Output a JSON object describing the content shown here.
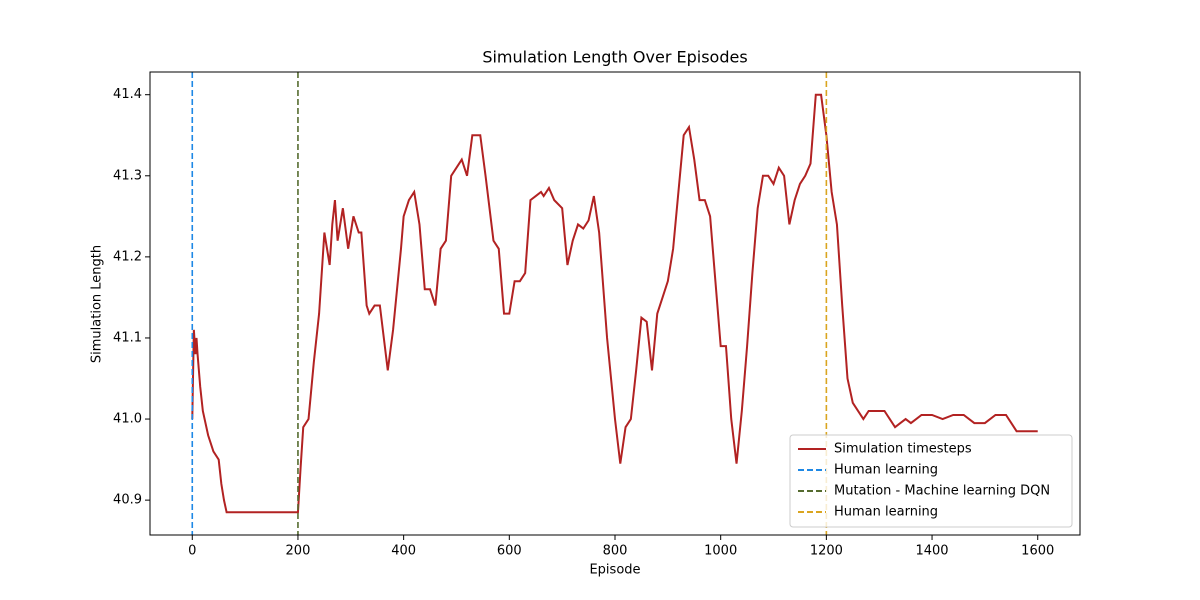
{
  "chart_data": {
    "type": "line",
    "title": "Simulation Length Over Episodes",
    "xlabel": "Episode",
    "ylabel": "Simulation Length",
    "xlim": [
      -80,
      1680
    ],
    "ylim": [
      40.857,
      41.428
    ],
    "xticks": [
      0,
      200,
      400,
      600,
      800,
      1000,
      1200,
      1400,
      1600
    ],
    "yticks": [
      40.9,
      {
        "value": 41,
        "label": "41.0"
      },
      41.1,
      41.2,
      41.3,
      41.4
    ],
    "legend": "lower right",
    "x": [
      0,
      3,
      6,
      8,
      10,
      15,
      20,
      30,
      40,
      50,
      55,
      60,
      65,
      70,
      200,
      205,
      210,
      220,
      230,
      240,
      250,
      260,
      265,
      270,
      275,
      285,
      295,
      305,
      315,
      320,
      330,
      335,
      345,
      355,
      370,
      380,
      395,
      400,
      410,
      420,
      430,
      440,
      450,
      460,
      470,
      480,
      490,
      500,
      510,
      520,
      530,
      545,
      555,
      570,
      580,
      590,
      600,
      610,
      620,
      630,
      640,
      650,
      660,
      665,
      675,
      685,
      700,
      710,
      720,
      730,
      740,
      750,
      760,
      770,
      785,
      800,
      810,
      820,
      830,
      840,
      850,
      860,
      870,
      880,
      890,
      900,
      910,
      920,
      930,
      940,
      950,
      960,
      970,
      980,
      990,
      1000,
      1010,
      1020,
      1030,
      1040,
      1050,
      1060,
      1070,
      1080,
      1090,
      1100,
      1110,
      1120,
      1130,
      1140,
      1150,
      1160,
      1170,
      1180,
      1190,
      1200,
      1210,
      1220,
      1230,
      1240,
      1250,
      1260,
      1270,
      1280,
      1290,
      1300,
      1310,
      1320,
      1330,
      1340,
      1350,
      1360,
      1370,
      1380,
      1400,
      1420,
      1440,
      1460,
      1480,
      1500,
      1520,
      1540,
      1550,
      1560,
      1600
    ],
    "series": [
      {
        "name": "Simulation timesteps",
        "color": "#b22222",
        "values": [
          41.0,
          41.11,
          41.08,
          41.1,
          41.08,
          41.04,
          41.01,
          40.98,
          40.96,
          40.95,
          40.92,
          40.9,
          40.885,
          40.885,
          40.885,
          40.94,
          40.99,
          41.0,
          41.07,
          41.13,
          41.23,
          41.19,
          41.24,
          41.27,
          41.22,
          41.26,
          41.21,
          41.25,
          41.23,
          41.23,
          41.14,
          41.13,
          41.14,
          41.14,
          41.06,
          41.11,
          41.21,
          41.25,
          41.27,
          41.28,
          41.24,
          41.16,
          41.16,
          41.14,
          41.21,
          41.22,
          41.3,
          41.31,
          41.32,
          41.3,
          41.35,
          41.35,
          41.3,
          41.22,
          41.21,
          41.13,
          41.13,
          41.17,
          41.17,
          41.18,
          41.27,
          41.275,
          41.28,
          41.275,
          41.285,
          41.27,
          41.26,
          41.19,
          41.22,
          41.24,
          41.235,
          41.245,
          41.275,
          41.23,
          41.1,
          41.0,
          40.945,
          40.99,
          41.0,
          41.06,
          41.125,
          41.12,
          41.06,
          41.13,
          41.15,
          41.17,
          41.21,
          41.28,
          41.35,
          41.36,
          41.32,
          41.27,
          41.27,
          41.25,
          41.17,
          41.09,
          41.09,
          41.0,
          40.945,
          41.01,
          41.09,
          41.18,
          41.26,
          41.3,
          41.3,
          41.29,
          41.31,
          41.3,
          41.24,
          41.27,
          41.29,
          41.3,
          41.315,
          41.4,
          41.4,
          41.35,
          41.28,
          41.24,
          41.14,
          41.05,
          41.02,
          41.01,
          41.0,
          41.01,
          41.01,
          41.01,
          41.01,
          41.0,
          40.99,
          40.995,
          41.0,
          40.995,
          41.0,
          41.005,
          41.005,
          41.0,
          41.005,
          41.005,
          40.995,
          40.995,
          41.005,
          41.005,
          40.995,
          40.985,
          40.985
        ]
      }
    ],
    "vlines": [
      {
        "name": "Human learning",
        "color": "#1e88e5",
        "x": 0
      },
      {
        "name": "Mutation - Machine learning DQN",
        "color": "#556b2f",
        "x": 200
      },
      {
        "name": "Human learning",
        "color": "#daa520",
        "x": 1200
      }
    ]
  }
}
